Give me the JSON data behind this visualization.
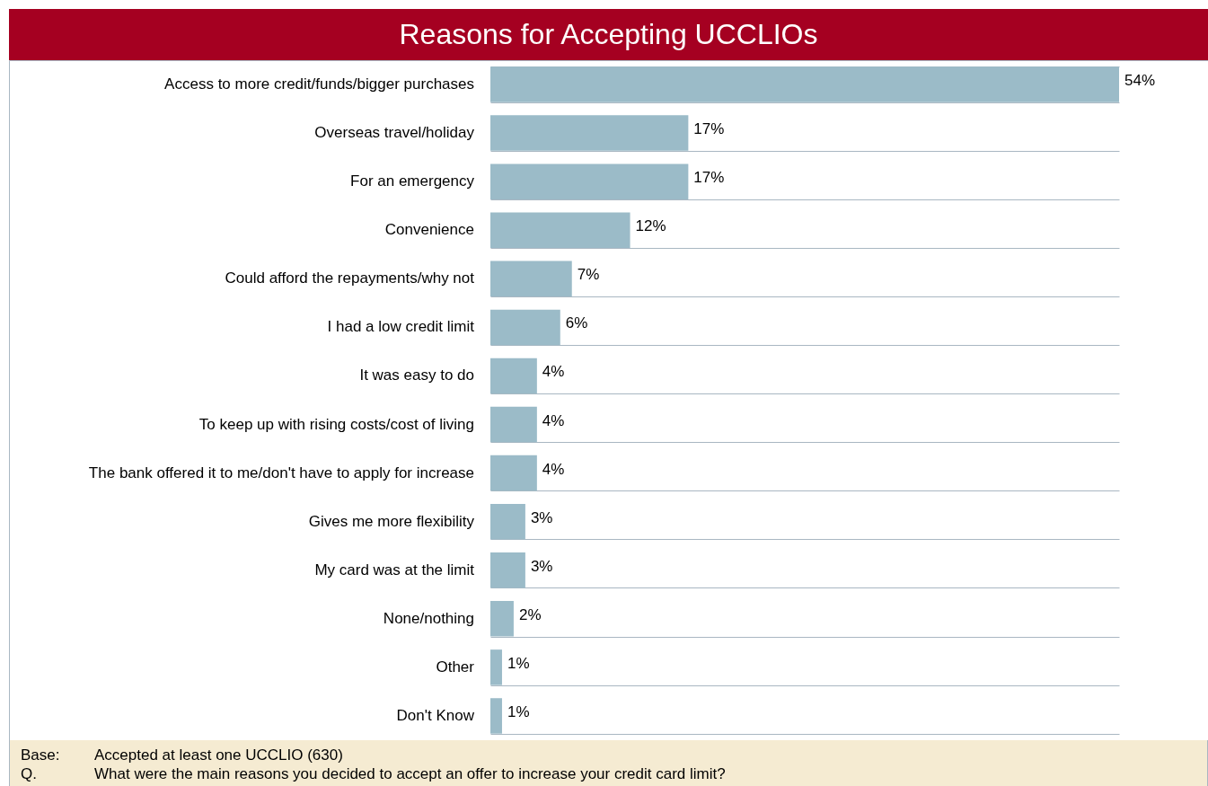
{
  "chart_data": {
    "type": "bar",
    "orientation": "horizontal",
    "title": "Reasons for Accepting UCCLIOs",
    "categories": [
      "Access to more credit/funds/bigger purchases",
      "Overseas travel/holiday",
      "For an emergency",
      "Convenience",
      "Could afford the repayments/why not",
      "I had a low credit limit",
      "It was easy to do",
      "To keep up with rising costs/cost of living",
      "The bank offered it to me/don't have to apply for increase",
      "Gives me more flexibility",
      "My card was at the limit",
      "None/nothing",
      "Other",
      "Don't Know"
    ],
    "values": [
      54,
      17,
      17,
      12,
      7,
      6,
      4,
      4,
      4,
      3,
      3,
      2,
      1,
      1
    ],
    "value_labels": [
      "54%",
      "17%",
      "17%",
      "12%",
      "7%",
      "6%",
      "4%",
      "4%",
      "4%",
      "3%",
      "3%",
      "2%",
      "1%",
      "1%"
    ],
    "color": "#9bbbc8",
    "grid": "y",
    "annotations": [
      "Base: Accepted at least one UCCLIO (630)",
      "Q. What were the main reasons you decided to accept an offer to increase your credit card limit?"
    ]
  }
}
